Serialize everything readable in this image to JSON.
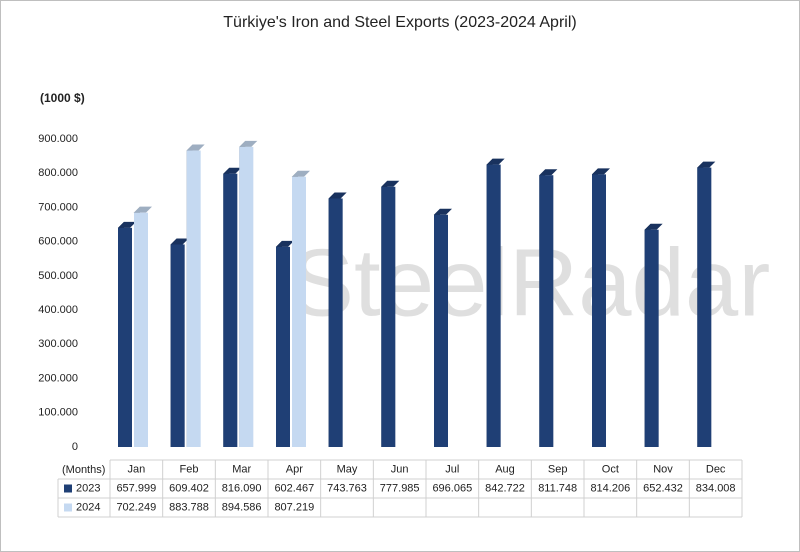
{
  "chart_data": {
    "type": "bar",
    "title": "Türkiye's Iron and Steel Exports (2023-2024 April)",
    "y_label": "(1000 $)",
    "x_label": "(Months)",
    "watermark": "SteelRadar",
    "categories": [
      "Jan",
      "Feb",
      "Mar",
      "Apr",
      "May",
      "Jun",
      "Jul",
      "Aug",
      "Sep",
      "Oct",
      "Nov",
      "Dec"
    ],
    "series": [
      {
        "name": "2023",
        "color": "#1f3f75",
        "values": [
          657999,
          609402,
          816090,
          602467,
          743763,
          777985,
          696065,
          842722,
          811748,
          814206,
          652432,
          834008
        ],
        "value_labels": [
          "657.999",
          "609.402",
          "816.090",
          "602.467",
          "743.763",
          "777.985",
          "696.065",
          "842.722",
          "811.748",
          "814.206",
          "652.432",
          "834.008"
        ]
      },
      {
        "name": "2024",
        "color": "#c5d9f1",
        "values": [
          702249,
          883788,
          894586,
          807219,
          null,
          null,
          null,
          null,
          null,
          null,
          null,
          null
        ],
        "value_labels": [
          "702.249",
          "883.788",
          "894.586",
          "807.219",
          null,
          null,
          null,
          null,
          null,
          null,
          null,
          null
        ]
      }
    ],
    "ylim": [
      0,
      900000
    ],
    "yticks": [
      {
        "value": 0,
        "label": "0"
      },
      {
        "value": 100000,
        "label": "100.000"
      },
      {
        "value": 200000,
        "label": "200.000"
      },
      {
        "value": 300000,
        "label": "300.000"
      },
      {
        "value": 400000,
        "label": "400.000"
      },
      {
        "value": 500000,
        "label": "500.000"
      },
      {
        "value": 600000,
        "label": "600.000"
      },
      {
        "value": 700000,
        "label": "700.000"
      },
      {
        "value": 800000,
        "label": "800.000"
      },
      {
        "value": 900000,
        "label": "900.000"
      }
    ],
    "grid": false
  }
}
